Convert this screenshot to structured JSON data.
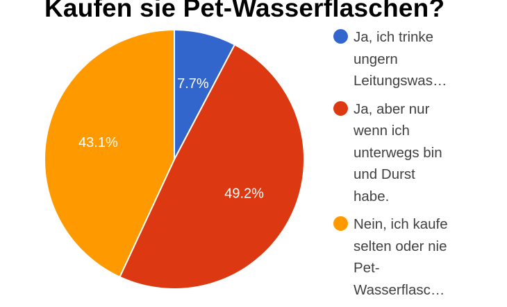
{
  "chart_data": {
    "type": "pie",
    "title": "Kaufen sie Pet-Wasserflaschen?",
    "slices": [
      {
        "label": "Ja, ich trinke\nungern\nLeitungswas…",
        "value": 7.7,
        "value_label": "7.7%",
        "color": "#3366cc"
      },
      {
        "label": "Ja, aber nur\nwenn ich\nunterwegs bin\nund Durst\nhabe.",
        "value": 49.2,
        "value_label": "49.2%",
        "color": "#dc3912"
      },
      {
        "label": "Nein, ich kaufe\nselten oder nie\nPet-\nWasserflasc…",
        "value": 43.1,
        "value_label": "43.1%",
        "color": "#ff9900"
      }
    ],
    "legend_position": "right"
  }
}
